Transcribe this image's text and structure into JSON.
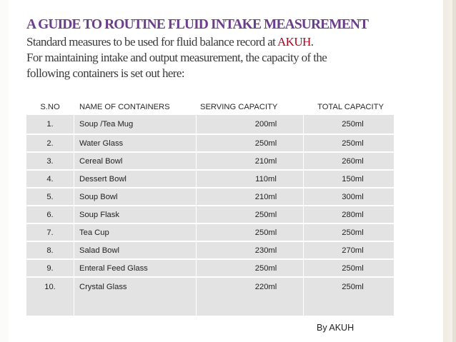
{
  "slide": {
    "title": "A GUIDE TO ROUTINE FLUID INTAKE MEASUREMENT",
    "intro_line1_prefix": "Standard measures to be used for fluid balance record at ",
    "intro_org": "AKUH",
    "intro_line1_suffix": ".",
    "intro_line2": "For maintaining intake and output measurement, the capacity of the",
    "intro_line3": "following containers is set out here:",
    "byline": "By AKUH"
  },
  "table": {
    "headers": [
      "S.NO",
      "NAME OF CONTAINERS",
      "SERVING CAPACITY",
      "TOTAL CAPACITY"
    ],
    "rows": [
      {
        "sno": "1.",
        "name": "Soup /Tea Mug",
        "serving": "200ml",
        "total": "250ml"
      },
      {
        "sno": "2.",
        "name": "Water Glass",
        "serving": "250ml",
        "total": "250ml"
      },
      {
        "sno": "3.",
        "name": "Cereal Bowl",
        "serving": "210ml",
        "total": "260ml"
      },
      {
        "sno": "4.",
        "name": "Dessert Bowl",
        "serving": "110ml",
        "total": "150ml"
      },
      {
        "sno": "5.",
        "name": "Soup Bowl",
        "serving": "210ml",
        "total": "300ml"
      },
      {
        "sno": "6.",
        "name": "Soup Flask",
        "serving": "250ml",
        "total": "280ml"
      },
      {
        "sno": "7.",
        "name": "Tea Cup",
        "serving": "250ml",
        "total": "250ml"
      },
      {
        "sno": "8.",
        "name": "Salad Bowl",
        "serving": "230ml",
        "total": "270ml"
      },
      {
        "sno": "9.",
        "name": "Enteral Feed Glass",
        "serving": "250ml",
        "total": "250ml"
      },
      {
        "sno": "10.",
        "name": "Crystal Glass",
        "serving": "220ml",
        "total": "250ml"
      }
    ]
  },
  "colors": {
    "title": "#6b3d8c",
    "org_highlight": "#b3001b",
    "table_fill": "#e3e3e3"
  }
}
